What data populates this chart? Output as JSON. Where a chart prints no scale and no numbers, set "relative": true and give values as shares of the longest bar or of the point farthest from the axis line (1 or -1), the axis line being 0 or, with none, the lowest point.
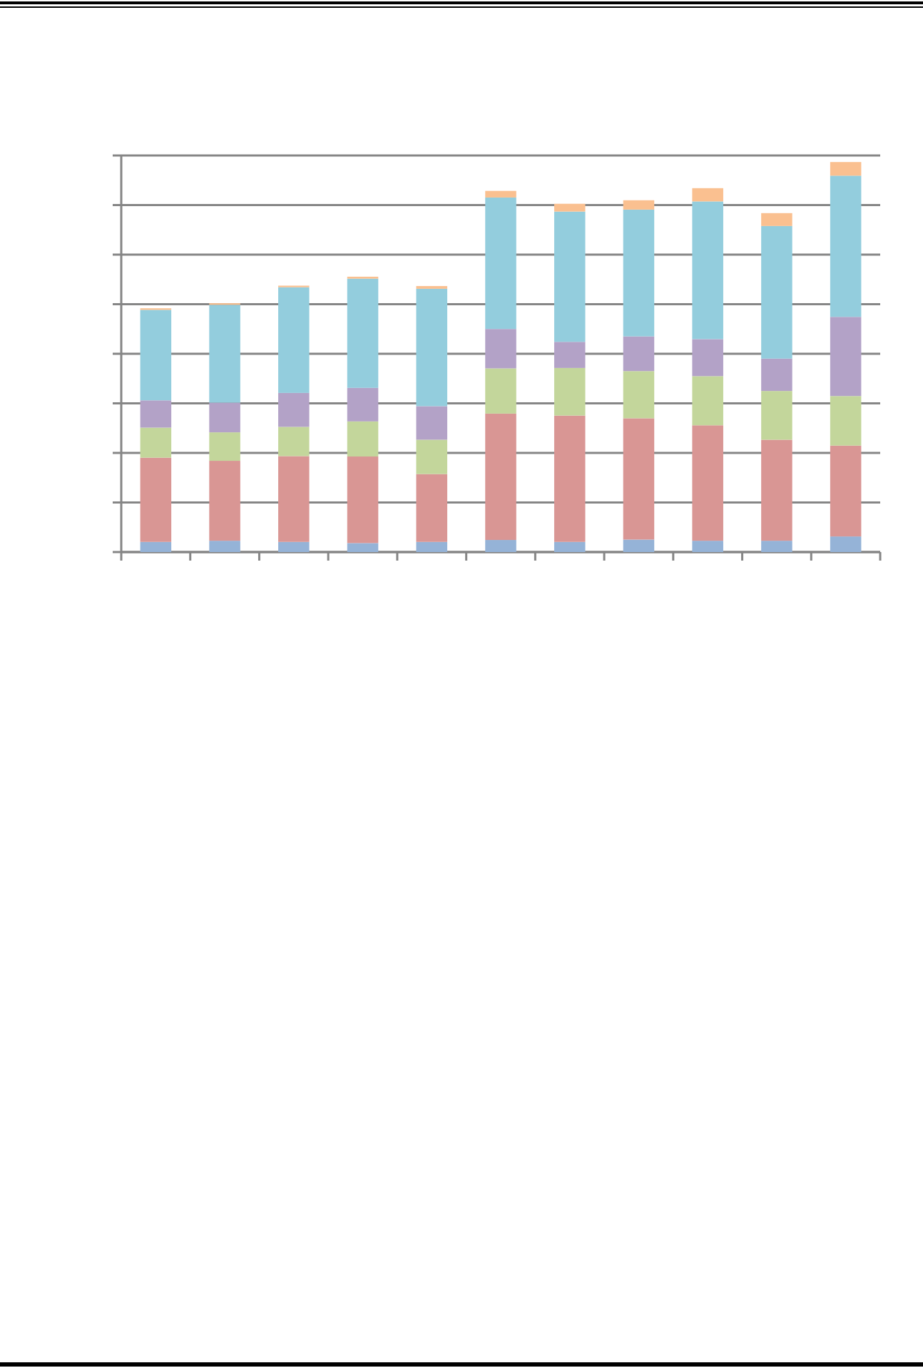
{
  "chart_data": {
    "type": "bar",
    "relative": true,
    "stacked": true,
    "grid": true,
    "tick_labels": false,
    "categories": [
      null,
      null,
      null,
      null,
      null,
      null,
      null,
      null,
      null,
      null,
      null
    ],
    "series": [
      {
        "color": "#95b3d7",
        "values": [
          0.026,
          0.029,
          0.026,
          0.023,
          0.026,
          0.031,
          0.026,
          0.032,
          0.029,
          0.029,
          0.04
        ]
      },
      {
        "color": "#d99694",
        "values": [
          0.216,
          0.205,
          0.22,
          0.222,
          0.174,
          0.324,
          0.324,
          0.311,
          0.296,
          0.259,
          0.233
        ]
      },
      {
        "color": "#c3d69b",
        "values": [
          0.077,
          0.073,
          0.075,
          0.09,
          0.088,
          0.116,
          0.122,
          0.121,
          0.126,
          0.125,
          0.127
        ]
      },
      {
        "color": "#b3a2c7",
        "values": [
          0.07,
          0.076,
          0.087,
          0.086,
          0.086,
          0.101,
          0.067,
          0.089,
          0.095,
          0.083,
          0.203
        ]
      },
      {
        "color": "#93cddd",
        "values": [
          0.232,
          0.251,
          0.271,
          0.28,
          0.301,
          0.337,
          0.334,
          0.325,
          0.353,
          0.34,
          0.362
        ]
      },
      {
        "color": "#fac090",
        "values": [
          0.004,
          0.004,
          0.004,
          0.005,
          0.007,
          0.017,
          0.02,
          0.024,
          0.034,
          0.033,
          0.035
        ]
      }
    ]
  }
}
